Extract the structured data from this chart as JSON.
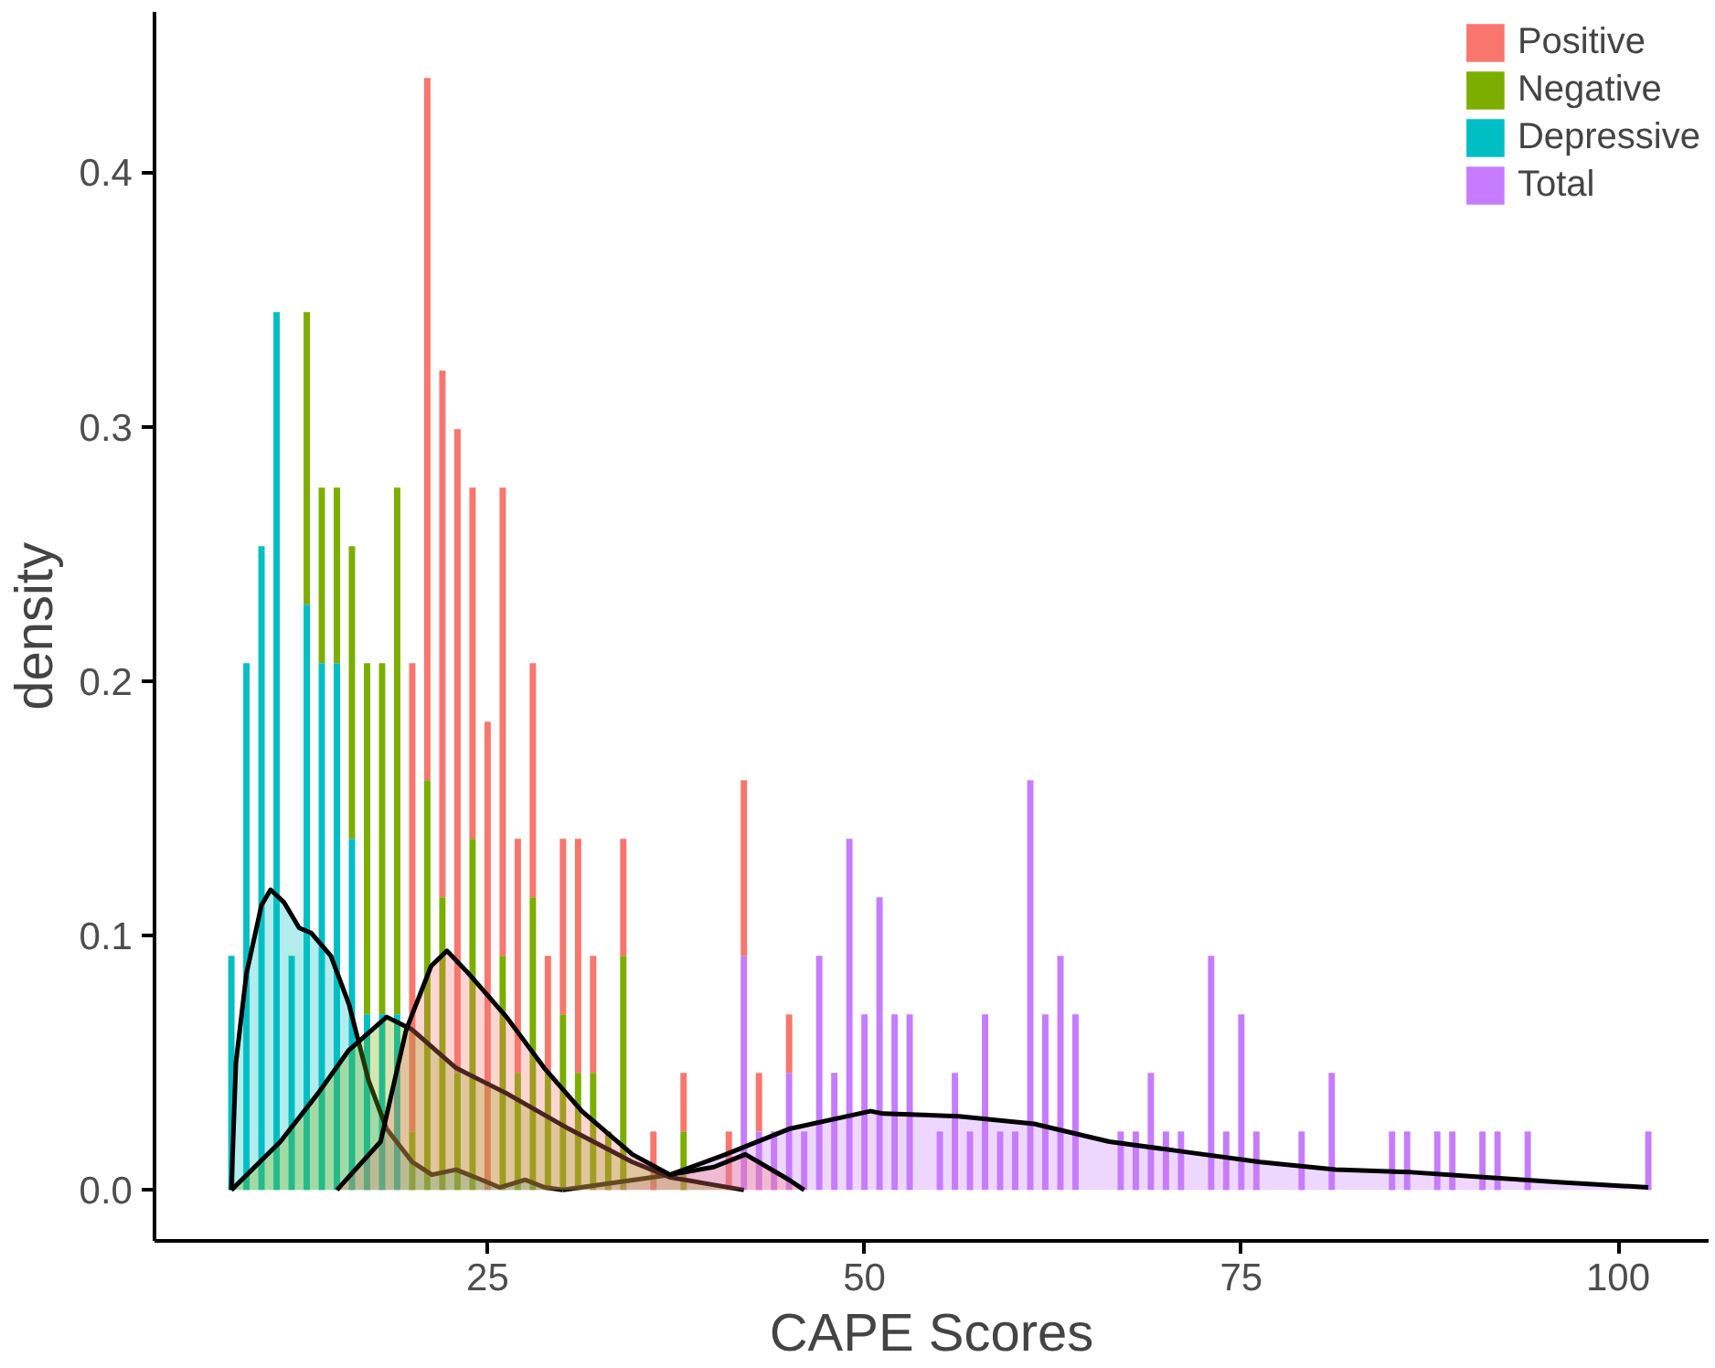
{
  "chart_data": {
    "type": "bar",
    "xlabel": "CAPE Scores",
    "ylabel": "density",
    "xlim": [
      2.9,
      106
    ],
    "ylim": [
      -0.02,
      0.463
    ],
    "xticks": [
      25,
      50,
      75,
      100
    ],
    "yticks": [
      {
        "value": 0,
        "label": "0.0"
      },
      0.1,
      0.2,
      0.3,
      0.4
    ],
    "grid": false,
    "legend": "top right",
    "x": [
      8,
      9,
      10,
      11,
      12,
      13,
      14,
      15,
      16,
      17,
      18,
      19,
      20,
      21,
      22,
      23,
      24,
      25,
      26,
      27,
      28,
      29,
      30,
      31,
      32,
      33,
      34,
      36,
      38,
      41,
      42,
      43,
      44,
      45,
      46,
      47,
      48,
      49,
      50,
      51,
      52,
      53,
      55,
      56,
      57,
      58,
      59,
      60,
      61,
      62,
      63,
      64,
      67,
      68,
      69,
      70,
      71,
      73,
      74,
      75,
      76,
      79,
      81,
      85,
      86,
      88,
      89,
      91,
      92,
      94,
      102
    ],
    "series": [
      {
        "name": "Positive",
        "color": "#f8766d",
        "values": [
          null,
          null,
          null,
          null,
          null,
          null,
          null,
          null,
          null,
          null,
          null,
          null,
          0.184,
          0.276,
          0.207,
          0.253,
          0.138,
          0.184,
          0.184,
          0.092,
          0.092,
          0.046,
          0.069,
          0.092,
          0.046,
          null,
          0.046,
          0.023,
          0.023,
          0.023,
          0.069,
          0.023,
          null,
          0.023,
          null,
          null,
          null,
          null,
          null,
          null,
          null,
          null,
          null,
          null,
          null,
          null,
          null,
          null,
          null,
          null,
          null,
          null,
          null,
          null,
          null,
          null,
          null,
          null,
          null,
          null,
          null,
          null,
          null,
          null,
          null,
          null,
          null,
          null,
          null,
          null,
          null
        ],
        "base": [
          null,
          null,
          null,
          null,
          null,
          null,
          null,
          null,
          null,
          null,
          null,
          null,
          0.023,
          0.161,
          0.115,
          0.046,
          0.138,
          0,
          0.092,
          0.046,
          0.115,
          0.046,
          0.069,
          0.046,
          0.046,
          null,
          0.092,
          0,
          0.023,
          0,
          0.092,
          0.023,
          null,
          0.046,
          null,
          null,
          null,
          null,
          null,
          null,
          null,
          null,
          null,
          null,
          null,
          null,
          null,
          null,
          null,
          null,
          null,
          null,
          null,
          null,
          null,
          null,
          null,
          null,
          null,
          null,
          null,
          null,
          null,
          null,
          null,
          null,
          null,
          null,
          null,
          null,
          null
        ]
      },
      {
        "name": "Negative",
        "color": "#7cae00",
        "values": [
          null,
          null,
          null,
          null,
          null,
          0.115,
          0.069,
          0.069,
          0.115,
          0.138,
          0.138,
          0.207,
          0.023,
          0.161,
          0.115,
          0.046,
          0.138,
          null,
          0.092,
          0.046,
          0.115,
          0.046,
          0.069,
          0.046,
          0.046,
          0.023,
          0.092,
          null,
          0.023,
          null,
          null,
          null,
          null,
          null,
          null,
          null,
          null,
          null,
          null,
          null,
          null,
          null,
          null,
          null,
          null,
          null,
          null,
          null,
          null,
          null,
          null,
          null,
          null,
          null,
          null,
          null,
          null,
          null,
          null,
          null,
          null,
          null,
          null,
          null,
          null,
          null,
          null,
          null,
          null,
          null,
          null
        ],
        "base": [
          null,
          null,
          null,
          null,
          null,
          0.23,
          0.207,
          0.207,
          0.138,
          0.069,
          0.069,
          0.069,
          0,
          0,
          0,
          0,
          0,
          null,
          0,
          0,
          0,
          0,
          0,
          0,
          0,
          0,
          0,
          null,
          0,
          null,
          null,
          null,
          null,
          null,
          null,
          null,
          null,
          null,
          null,
          null,
          null,
          null,
          null,
          null,
          null,
          null,
          null,
          null,
          null,
          null,
          null,
          null,
          null,
          null,
          null,
          null,
          null,
          null,
          null,
          null,
          null,
          null,
          null,
          null,
          null,
          null,
          null,
          null,
          null,
          null,
          null
        ]
      },
      {
        "name": "Depressive",
        "color": "#00bfc4",
        "values": [
          0.092,
          0.207,
          0.253,
          0.345,
          0.092,
          0.23,
          0.207,
          0.207,
          0.138,
          0.069,
          0.069,
          0.069,
          null,
          null,
          null,
          null,
          null,
          null,
          null,
          null,
          null,
          null,
          null,
          null,
          null,
          null,
          null,
          null,
          null,
          null,
          null,
          null,
          null,
          null,
          null,
          null,
          null,
          null,
          null,
          null,
          null,
          null,
          null,
          null,
          null,
          null,
          null,
          null,
          null,
          null,
          null,
          null,
          null,
          null,
          null,
          null,
          null,
          null,
          null,
          null,
          null,
          null,
          null,
          null,
          null,
          null,
          null,
          null,
          null,
          null,
          null
        ]
      },
      {
        "name": "Total",
        "color": "#c77cff",
        "values": [
          null,
          null,
          null,
          null,
          null,
          null,
          null,
          null,
          null,
          null,
          null,
          null,
          null,
          null,
          null,
          null,
          null,
          null,
          null,
          null,
          null,
          null,
          null,
          null,
          null,
          null,
          null,
          null,
          null,
          null,
          0.092,
          0.023,
          0.023,
          0.046,
          0.023,
          0.092,
          0.046,
          0.138,
          0.069,
          0.115,
          0.069,
          0.069,
          0.023,
          0.046,
          0.023,
          0.069,
          0.023,
          0.023,
          0.161,
          0.069,
          0.092,
          0.069,
          0.023,
          0.023,
          0.046,
          0.023,
          0.023,
          0.092,
          0.023,
          0.069,
          0.023,
          0.023,
          0.046,
          0.023,
          0.023,
          0.023,
          0.023,
          0.023,
          0.023,
          0.023,
          0.023
        ]
      },
      {
        "type": "area",
        "color": "#c77cff",
        "x": [
          30,
          37.1,
          40.8,
          45,
          50.4,
          51.25,
          56.25,
          61.25,
          66.25,
          71.25,
          76.25,
          81.25,
          86.25,
          91.25,
          96.25,
          102
        ],
        "values": [
          0,
          0.006,
          0.014,
          0.024,
          0.031,
          0.03,
          0.029,
          0.026,
          0.019,
          0.015,
          0.011,
          0.008,
          0.007,
          0.005,
          0.003,
          0.001
        ]
      },
      {
        "type": "area",
        "color": "#00bfc4",
        "x": [
          8,
          8.3,
          9,
          10,
          10.6,
          11.5,
          12.5,
          13.3,
          14.6,
          15.8,
          17.1,
          18.3,
          20,
          21.3,
          22.9,
          24.6,
          25.8,
          27.5,
          28.8,
          30
        ],
        "values": [
          0,
          0.05,
          0.085,
          0.112,
          0.118,
          0.113,
          0.103,
          0.101,
          0.092,
          0.073,
          0.043,
          0.024,
          0.011,
          0.006,
          0.008,
          0.004,
          0.001,
          0.004,
          0.001,
          0
        ]
      },
      {
        "type": "area",
        "color": "#7cae00",
        "x": [
          8,
          11.25,
          13.75,
          15.8,
          18.3,
          20,
          22.9,
          26.25,
          30.4,
          34.6,
          37.1,
          42
        ],
        "values": [
          0,
          0.019,
          0.038,
          0.055,
          0.068,
          0.063,
          0.048,
          0.038,
          0.024,
          0.011,
          0.005,
          0
        ]
      },
      {
        "type": "area",
        "color": "#f8766d",
        "x": [
          15,
          17.9,
          19.6,
          21.25,
          22.3,
          23.75,
          26.25,
          28.75,
          31.25,
          34.6,
          37.1,
          40,
          42.1,
          45,
          46
        ],
        "values": [
          0,
          0.019,
          0.063,
          0.088,
          0.094,
          0.085,
          0.068,
          0.048,
          0.031,
          0.014,
          0.006,
          0.009,
          0.014,
          0.004,
          0
        ]
      }
    ]
  }
}
